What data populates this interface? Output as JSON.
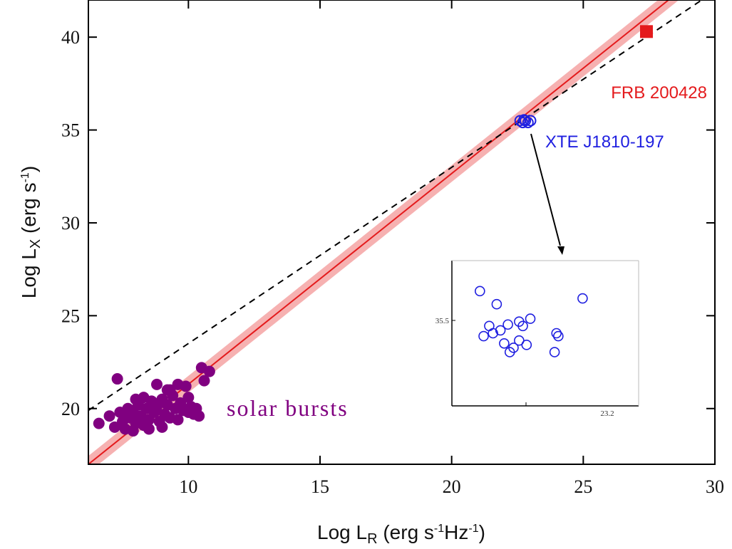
{
  "chart_data": {
    "type": "scatter",
    "xlabel": {
      "prefix": "Log L",
      "sub": "R",
      "unit": " (erg s",
      "unit_sup1": "-1",
      "unit_mid": "Hz",
      "unit_sup2": "-1",
      "unit_end": ")"
    },
    "ylabel": {
      "prefix": "Log L",
      "sub": "X",
      "unit": " (erg s",
      "unit_sup": "-1",
      "unit_end": ")"
    },
    "xlim": [
      6.2,
      30
    ],
    "ylim": [
      17,
      42
    ],
    "xticks": [
      10,
      15,
      20,
      25,
      30
    ],
    "yticks": [
      20,
      25,
      30,
      35,
      40
    ],
    "grid": false,
    "fit_line": {
      "x": [
        6.2,
        30
      ],
      "y": [
        17.0,
        44.0
      ],
      "color": "#e41a1c",
      "band_half_width": 0.45,
      "band_color": "#f5a3a3"
    },
    "benz_gudel_line": {
      "style": "dashed",
      "color": "#000000",
      "x": [
        6.2,
        29.5
      ],
      "y": [
        19.9,
        42.0
      ]
    },
    "series": [
      {
        "label": "FRB 200428",
        "marker": "square",
        "color": "#e41a1c",
        "points": [
          [
            27.4,
            40.3
          ]
        ]
      },
      {
        "label": "XTE J1810-197",
        "marker": "circle-open",
        "color": "#1f1fe0",
        "points": [
          [
            22.6,
            35.5
          ],
          [
            22.7,
            35.4
          ],
          [
            22.8,
            35.5
          ],
          [
            22.9,
            35.4
          ],
          [
            23.0,
            35.5
          ],
          [
            22.75,
            35.55
          ]
        ]
      },
      {
        "label": "solar bursts",
        "marker": "circle",
        "color": "#800080",
        "points": [
          [
            6.6,
            19.2
          ],
          [
            7.0,
            19.6
          ],
          [
            7.2,
            19.0
          ],
          [
            7.3,
            21.6
          ],
          [
            7.4,
            19.8
          ],
          [
            7.5,
            19.3
          ],
          [
            7.6,
            18.9
          ],
          [
            7.7,
            20.0
          ],
          [
            7.8,
            19.5
          ],
          [
            7.9,
            19.9
          ],
          [
            8.0,
            19.2
          ],
          [
            8.1,
            20.2
          ],
          [
            8.2,
            19.6
          ],
          [
            8.3,
            19.1
          ],
          [
            8.4,
            20.0
          ],
          [
            8.5,
            19.4
          ],
          [
            8.6,
            20.4
          ],
          [
            8.7,
            19.8
          ],
          [
            8.8,
            20.1
          ],
          [
            8.9,
            19.3
          ],
          [
            9.0,
            20.5
          ],
          [
            9.1,
            19.7
          ],
          [
            9.2,
            20.2
          ],
          [
            9.3,
            19.5
          ],
          [
            9.4,
            20.7
          ],
          [
            9.5,
            20.0
          ],
          [
            9.6,
            19.4
          ],
          [
            9.7,
            20.3
          ],
          [
            9.8,
            19.9
          ],
          [
            9.9,
            21.2
          ],
          [
            10.0,
            19.8
          ],
          [
            10.1,
            20.1
          ],
          [
            10.2,
            19.7
          ],
          [
            10.3,
            20.0
          ],
          [
            10.4,
            19.6
          ],
          [
            10.5,
            22.2
          ],
          [
            10.6,
            21.5
          ],
          [
            10.8,
            22.0
          ],
          [
            8.8,
            21.3
          ],
          [
            9.6,
            21.3
          ],
          [
            9.3,
            21.0
          ],
          [
            7.9,
            18.8
          ],
          [
            8.5,
            18.9
          ],
          [
            9.0,
            19.0
          ],
          [
            8.3,
            20.6
          ],
          [
            9.2,
            21.0
          ],
          [
            10.0,
            20.6
          ],
          [
            7.6,
            19.6
          ],
          [
            8.0,
            20.5
          ]
        ]
      }
    ],
    "annotations": [
      {
        "text": "FRB 200428",
        "color": "#e41a1c"
      },
      {
        "text": "XTE J1810-197",
        "color": "#1f1fe0"
      },
      {
        "text": "solar bursts",
        "color": "#800080"
      }
    ],
    "inset": {
      "ytick_label": "35.5",
      "xtick_label": "23.2",
      "marker": "circle-open",
      "color": "#1f1fe0",
      "points": [
        [
          0.15,
          0.79
        ],
        [
          0.17,
          0.48
        ],
        [
          0.2,
          0.55
        ],
        [
          0.22,
          0.5
        ],
        [
          0.24,
          0.7
        ],
        [
          0.26,
          0.52
        ],
        [
          0.28,
          0.43
        ],
        [
          0.3,
          0.56
        ],
        [
          0.31,
          0.37
        ],
        [
          0.33,
          0.4
        ],
        [
          0.36,
          0.45
        ],
        [
          0.38,
          0.55
        ],
        [
          0.4,
          0.42
        ],
        [
          0.42,
          0.6
        ],
        [
          0.55,
          0.37
        ],
        [
          0.57,
          0.48
        ],
        [
          0.56,
          0.5
        ],
        [
          0.7,
          0.74
        ],
        [
          0.36,
          0.58
        ]
      ]
    }
  }
}
